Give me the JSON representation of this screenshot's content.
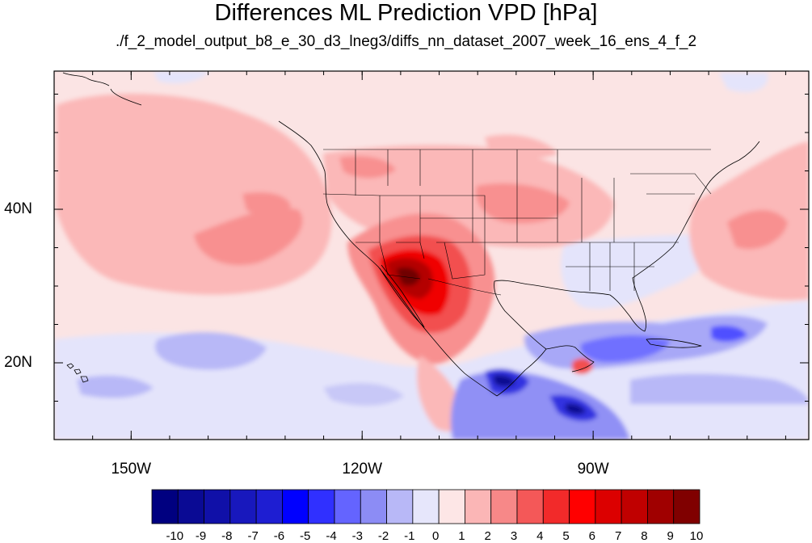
{
  "title": "Differences ML Prediction VPD [hPa]",
  "subtitle": "./f_2_model_output_b8_e_30_d3_lneg3/diffs_nn_dataset_2007_week_16_ens_4_f_2",
  "map": {
    "projection": "cylindrical-equidistant",
    "lon_range": [
      -160,
      -62
    ],
    "lat_range": [
      10,
      58
    ],
    "lon_ticks": [
      {
        "value": -150,
        "label": "150W"
      },
      {
        "value": -120,
        "label": "120W"
      },
      {
        "value": -90,
        "label": "90W"
      }
    ],
    "lat_ticks": [
      {
        "value": 40,
        "label": "40N"
      },
      {
        "value": 20,
        "label": "20N"
      }
    ],
    "field": "VPD difference (ML prediction)",
    "units": "hPa",
    "features": [
      "coastlines",
      "US state boundaries",
      "international boundaries"
    ]
  },
  "colorbar": {
    "labels": [
      "-10",
      "-9",
      "-8",
      "-7",
      "-6",
      "-5",
      "-4",
      "-3",
      "-2",
      "-1",
      "0",
      "1",
      "2",
      "3",
      "4",
      "5",
      "6",
      "7",
      "8",
      "9",
      "10"
    ],
    "colors": [
      "#000080",
      "#0a0a94",
      "#1010a8",
      "#1818bd",
      "#1e1ed2",
      "#0000ff",
      "#3030ff",
      "#6464ff",
      "#8c8cf5",
      "#b8b8f7",
      "#e6e6fb",
      "#fde6e6",
      "#fbb6b6",
      "#f78888",
      "#f45858",
      "#f22a2a",
      "#ff0000",
      "#dc0000",
      "#c00000",
      "#a00000",
      "#800000"
    ]
  }
}
